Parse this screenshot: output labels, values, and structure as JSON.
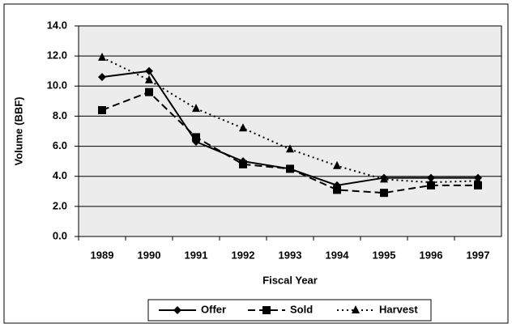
{
  "chart_data": {
    "type": "line",
    "xlabel": "Fiscal Year",
    "ylabel": "Volume (BBF)",
    "categories": [
      "1989",
      "1990",
      "1991",
      "1992",
      "1993",
      "1994",
      "1995",
      "1996",
      "1997"
    ],
    "series": [
      {
        "name": "Offer",
        "color": "#000000",
        "marker": "diamond",
        "dash": "solid",
        "values": [
          10.6,
          11.0,
          6.3,
          5.0,
          4.5,
          3.4,
          3.9,
          3.9,
          3.9
        ]
      },
      {
        "name": "Sold",
        "color": "#000000",
        "marker": "square",
        "dash": "dashed",
        "values": [
          8.4,
          9.6,
          6.6,
          4.8,
          4.5,
          3.1,
          2.9,
          3.4,
          3.4
        ]
      },
      {
        "name": "Harvest",
        "color": "#000000",
        "marker": "triangle",
        "dash": "dotted",
        "values": [
          11.9,
          10.4,
          8.5,
          7.2,
          5.8,
          4.7,
          3.8,
          3.6,
          3.7
        ]
      }
    ],
    "ylim": [
      0,
      14
    ],
    "yticks": [
      {
        "value": 0,
        "label": "0.0"
      },
      {
        "value": 2,
        "label": "2.0"
      },
      {
        "value": 4,
        "label": "4.0"
      },
      {
        "value": 6,
        "label": "6.0"
      },
      {
        "value": 8,
        "label": "8.0"
      },
      {
        "value": 10,
        "label": "10.0"
      },
      {
        "value": 12,
        "label": "12.0"
      },
      {
        "value": 14,
        "label": "14.0"
      }
    ],
    "grid": true,
    "legend": "bottom"
  }
}
